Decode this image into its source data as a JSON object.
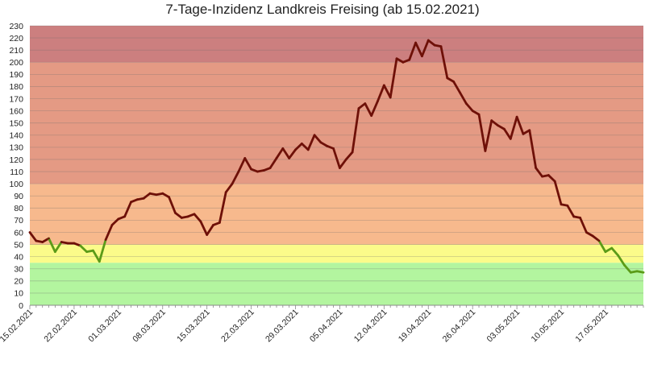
{
  "chart_data": {
    "type": "line",
    "title": "7-Tage-Inzidenz Landkreis Freising (ab 15.02.2021)",
    "xlabel": "",
    "ylabel": "",
    "ylim": [
      0,
      230
    ],
    "y_ticks": [
      0,
      10,
      20,
      30,
      40,
      50,
      60,
      70,
      80,
      90,
      100,
      110,
      120,
      130,
      140,
      150,
      160,
      170,
      180,
      190,
      200,
      210,
      220,
      230
    ],
    "x_tick_labels": [
      "15.02.2021",
      "22.02.2021",
      "01.03.2021",
      "08.03.2021",
      "15.03.2021",
      "22.03.2021",
      "29.03.2021",
      "05.04.2021",
      "12.04.2021",
      "19.04.2021",
      "26.04.2021",
      "03.05.2021",
      "10.05.2021",
      "17.05.2021"
    ],
    "grid": true,
    "legend": "none",
    "bands": [
      {
        "from": 0,
        "to": 35,
        "color": "#b3f59f"
      },
      {
        "from": 35,
        "to": 50,
        "color": "#fbfb8a"
      },
      {
        "from": 50,
        "to": 100,
        "color": "#f7b98d"
      },
      {
        "from": 100,
        "to": 200,
        "color": "#e49a84"
      },
      {
        "from": 200,
        "to": 230,
        "color": "#cc7f7f"
      }
    ],
    "line_colors": {
      "high": "#6e1008",
      "low": "#5b9b18",
      "threshold": 50
    },
    "series": [
      {
        "x": [
          "15.02.2021",
          "16.02.2021",
          "17.02.2021",
          "18.02.2021",
          "19.02.2021",
          "20.02.2021",
          "21.02.2021",
          "22.02.2021",
          "23.02.2021",
          "24.02.2021",
          "25.02.2021",
          "26.02.2021",
          "27.02.2021",
          "28.02.2021",
          "01.03.2021",
          "02.03.2021",
          "03.03.2021",
          "04.03.2021",
          "05.03.2021",
          "06.03.2021",
          "07.03.2021",
          "08.03.2021",
          "09.03.2021",
          "10.03.2021",
          "11.03.2021",
          "12.03.2021",
          "13.03.2021",
          "14.03.2021",
          "15.03.2021",
          "16.03.2021",
          "17.03.2021",
          "18.03.2021",
          "19.03.2021",
          "20.03.2021",
          "21.03.2021",
          "22.03.2021",
          "23.03.2021",
          "24.03.2021",
          "25.03.2021",
          "26.03.2021",
          "27.03.2021",
          "28.03.2021",
          "29.03.2021",
          "30.03.2021",
          "31.03.2021",
          "01.04.2021",
          "02.04.2021",
          "03.04.2021",
          "04.04.2021",
          "05.04.2021",
          "06.04.2021",
          "07.04.2021",
          "08.04.2021",
          "09.04.2021",
          "10.04.2021",
          "11.04.2021",
          "12.04.2021",
          "13.04.2021",
          "14.04.2021",
          "15.04.2021",
          "16.04.2021",
          "17.04.2021",
          "18.04.2021",
          "19.04.2021",
          "20.04.2021",
          "21.04.2021",
          "22.04.2021",
          "23.04.2021",
          "24.04.2021",
          "25.04.2021",
          "26.04.2021",
          "27.04.2021",
          "28.04.2021",
          "29.04.2021",
          "30.04.2021",
          "01.05.2021",
          "02.05.2021",
          "03.05.2021",
          "04.05.2021",
          "05.05.2021",
          "06.05.2021",
          "07.05.2021",
          "08.05.2021",
          "09.05.2021",
          "10.05.2021",
          "11.05.2021",
          "12.05.2021",
          "13.05.2021",
          "14.05.2021",
          "15.05.2021",
          "16.05.2021",
          "17.05.2021",
          "18.05.2021",
          "19.05.2021",
          "20.05.2021",
          "21.05.2021",
          "22.05.2021",
          "23.05.2021"
        ],
        "values": [
          60,
          53,
          52,
          55,
          44,
          52,
          51,
          51,
          49,
          44,
          45,
          36,
          54,
          66,
          71,
          73,
          85,
          87,
          88,
          92,
          91,
          92,
          89,
          76,
          72,
          73,
          75,
          69,
          58,
          66,
          68,
          93,
          100,
          110,
          121,
          112,
          110,
          111,
          113,
          121,
          129,
          121,
          128,
          133,
          128,
          140,
          134,
          131,
          129,
          113,
          120,
          126,
          162,
          166,
          156,
          168,
          181,
          171,
          203,
          200,
          202,
          216,
          205,
          218,
          214,
          213,
          187,
          184,
          175,
          166,
          160,
          157,
          127,
          152,
          148,
          145,
          137,
          155,
          141,
          144,
          113,
          106,
          107,
          102,
          83,
          82,
          73,
          72,
          60,
          57,
          53,
          44,
          47,
          41,
          33,
          27,
          28,
          27
        ]
      }
    ]
  }
}
